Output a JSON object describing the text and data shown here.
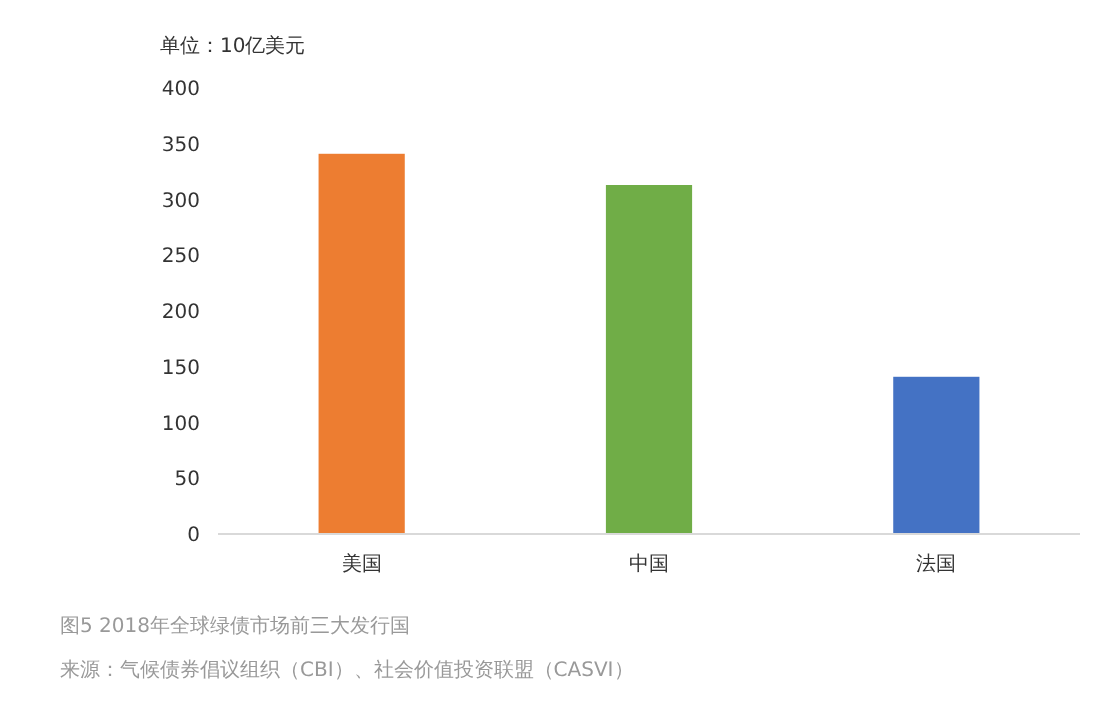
{
  "chart_data": {
    "type": "bar",
    "ylabel": "单位：10亿美元",
    "categories": [
      "美国",
      "中国",
      "法国"
    ],
    "values": [
      341,
      313,
      141
    ],
    "colors": [
      "#ed7d31",
      "#70ad47",
      "#4472c4"
    ],
    "ylim": [
      0,
      400
    ],
    "yticks": [
      0,
      50,
      100,
      150,
      200,
      250,
      300,
      350,
      400
    ],
    "grid": false,
    "annotations": [
      "图5 2018年全球绿债市场前三大发行国",
      "来源：气候债券倡议组织（CBI）、社会价值投资联盟（CASVI）"
    ]
  }
}
